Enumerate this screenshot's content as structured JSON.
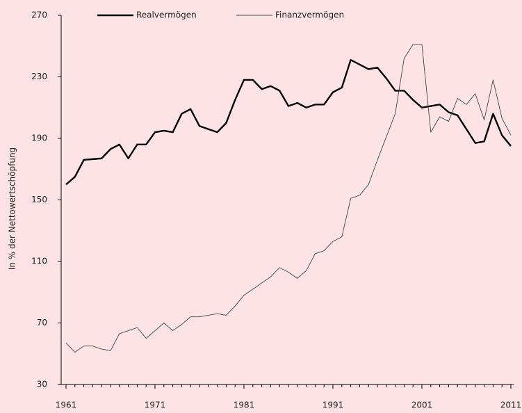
{
  "chart_data": {
    "type": "line",
    "y_label": "In % der Nettowertschöpfung",
    "x": [
      1961,
      1962,
      1963,
      1964,
      1965,
      1966,
      1967,
      1968,
      1969,
      1970,
      1971,
      1972,
      1973,
      1974,
      1975,
      1976,
      1977,
      1978,
      1979,
      1980,
      1981,
      1982,
      1983,
      1984,
      1985,
      1986,
      1987,
      1988,
      1989,
      1990,
      1991,
      1992,
      1993,
      1994,
      1995,
      1996,
      1997,
      1998,
      1999,
      2000,
      2001,
      2002,
      2003,
      2004,
      2005,
      2006,
      2007,
      2008,
      2009,
      2010,
      2011
    ],
    "series": [
      {
        "name": "Realvermögen",
        "color": "#000000",
        "values": [
          160,
          165,
          176,
          176.5,
          177,
          183,
          186,
          177,
          186,
          186,
          194,
          195,
          194,
          206,
          209,
          198,
          196,
          194,
          200,
          215,
          228,
          228,
          222,
          224,
          221,
          211,
          213,
          210,
          212,
          212,
          220,
          223,
          241,
          238,
          235,
          236,
          229,
          221,
          221,
          215,
          210,
          211,
          212,
          207,
          205,
          196,
          187,
          188,
          206,
          192,
          185
        ]
      },
      {
        "name": "Finanzvermögen",
        "color": "#444444",
        "values": [
          57,
          51,
          55,
          55,
          53,
          52,
          63,
          65,
          67,
          60,
          65,
          70,
          65,
          69,
          74,
          74,
          75,
          76,
          75,
          81,
          88,
          92,
          96,
          100,
          106,
          103,
          99,
          104,
          115,
          117,
          123,
          126,
          151,
          153,
          160,
          176,
          191,
          206,
          242,
          251,
          251,
          194,
          204,
          201,
          216,
          212,
          219,
          202,
          228,
          203,
          192
        ]
      }
    ],
    "xlim": [
      1961,
      2011
    ],
    "xticks": [
      1961,
      1971,
      1981,
      1991,
      2001,
      2011
    ],
    "ylim": [
      30,
      270
    ],
    "yticks": [
      30,
      70,
      110,
      150,
      190,
      230,
      270
    ],
    "legend": "top"
  }
}
